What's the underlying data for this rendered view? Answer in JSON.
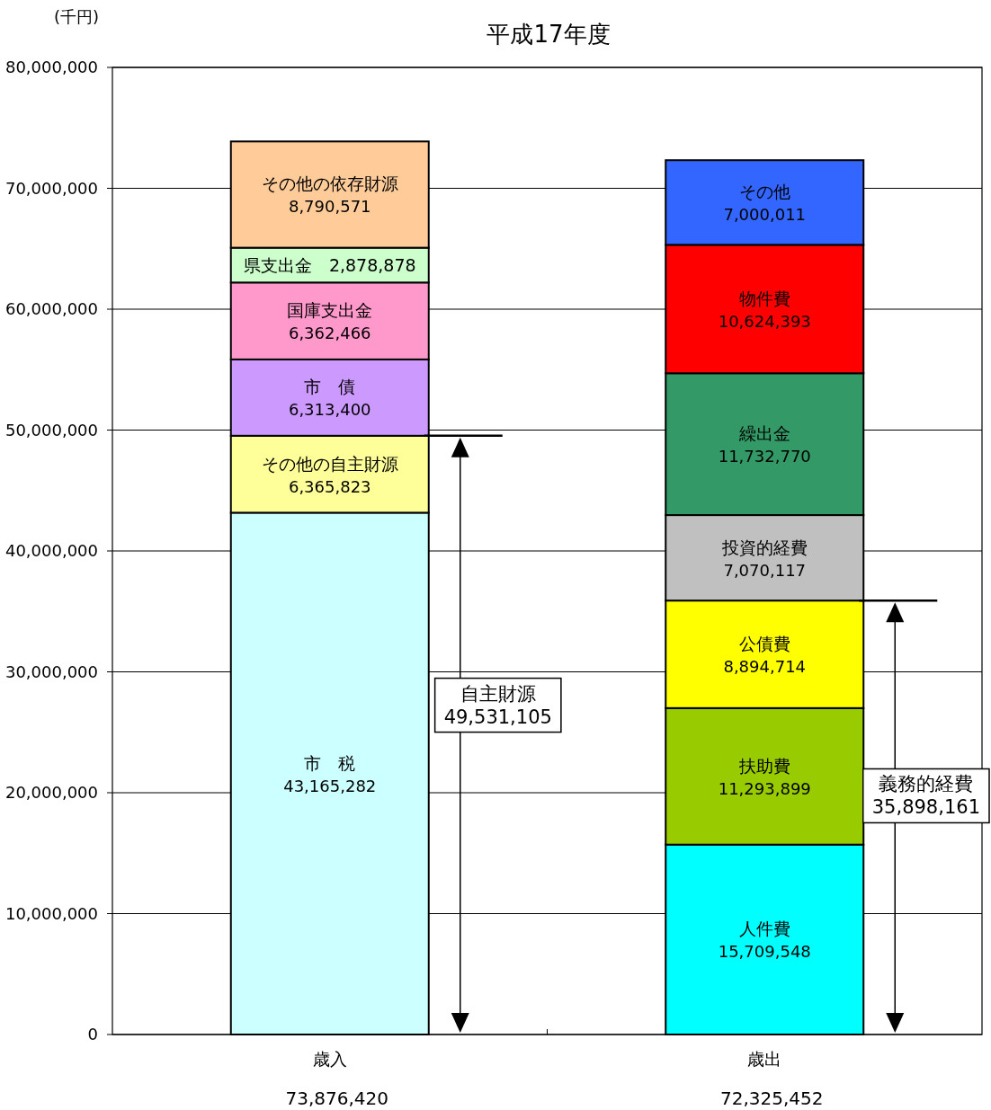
{
  "chart_data": {
    "type": "bar",
    "title": "平成17年度",
    "ylabel": "(千円)",
    "stacked": true,
    "grid": "y",
    "categories": [
      "歳入",
      "歳出"
    ],
    "ylim": [
      0,
      80000000
    ],
    "yticks": [
      {
        "value": 0,
        "label": "0"
      },
      {
        "value": 10000000,
        "label": "10,000,000"
      },
      {
        "value": 20000000,
        "label": "20,000,000"
      },
      {
        "value": 30000000,
        "label": "30,000,000"
      },
      {
        "value": 40000000,
        "label": "40,000,000"
      },
      {
        "value": 50000000,
        "label": "50,000,000"
      },
      {
        "value": 60000000,
        "label": "60,000,000"
      },
      {
        "value": 70000000,
        "label": "70,000,000"
      },
      {
        "value": 80000000,
        "label": "80,000,000"
      }
    ],
    "series": [
      {
        "name": "市　税",
        "color": "#ccffff",
        "values": [
          43165282,
          null
        ],
        "value_labels": [
          "43,165,282",
          null
        ]
      },
      {
        "name": "その他の自主財源",
        "color": "#ffff99",
        "values": [
          6365823,
          null
        ],
        "value_labels": [
          "6,365,823",
          null
        ]
      },
      {
        "name": "市　債",
        "color": "#cc99ff",
        "values": [
          6313400,
          null
        ],
        "value_labels": [
          "6,313,400",
          null
        ]
      },
      {
        "name": "国庫支出金",
        "color": "#ff99cc",
        "values": [
          6362466,
          null
        ],
        "value_labels": [
          "6,362,466",
          null
        ]
      },
      {
        "name": "県支出金",
        "color": "#ccffcc",
        "values": [
          2878878,
          null
        ],
        "value_labels": [
          "2,878,878",
          null
        ]
      },
      {
        "name": "その他の依存財源",
        "color": "#ffcc99",
        "values": [
          8790571,
          null
        ],
        "value_labels": [
          "8,790,571",
          null
        ]
      },
      {
        "name": "人件費",
        "color": "#00ffff",
        "values": [
          null,
          15709548
        ],
        "value_labels": [
          null,
          "15,709,548"
        ]
      },
      {
        "name": "扶助費",
        "color": "#99cc00",
        "values": [
          null,
          11293899
        ],
        "value_labels": [
          null,
          "11,293,899"
        ]
      },
      {
        "name": "公債費",
        "color": "#ffff00",
        "values": [
          null,
          8894714
        ],
        "value_labels": [
          null,
          "8,894,714"
        ]
      },
      {
        "name": "投資的経費",
        "color": "#c0c0c0",
        "values": [
          null,
          7070117
        ],
        "value_labels": [
          null,
          "7,070,117"
        ]
      },
      {
        "name": "繰出金",
        "color": "#339966",
        "values": [
          null,
          11732770
        ],
        "value_labels": [
          null,
          "11,732,770"
        ]
      },
      {
        "name": "物件費",
        "color": "#ff0000",
        "values": [
          null,
          10624393
        ],
        "value_labels": [
          null,
          "10,624,393"
        ]
      },
      {
        "name": "その他",
        "color": "#3366ff",
        "values": [
          null,
          7000011
        ],
        "value_labels": [
          null,
          "7,000,011"
        ]
      }
    ],
    "totals": [
      "73,876,420",
      "72,325,452"
    ],
    "annotations": [
      "自主財源\n49,531,105",
      "義務的経費\n35,898,161"
    ]
  }
}
